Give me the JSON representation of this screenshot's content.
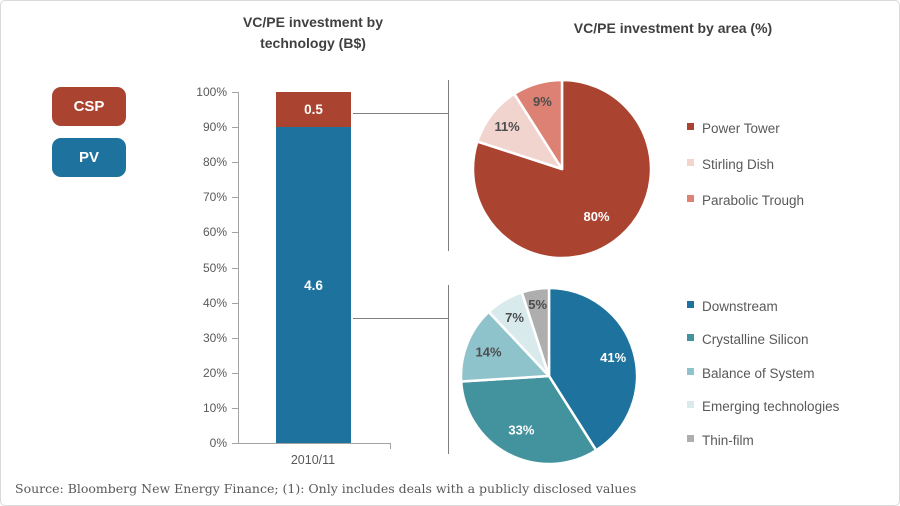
{
  "titles": {
    "bar_chart": "VC/PE investment by technology (B$)",
    "pie_charts": "VC/PE investment by area (%)"
  },
  "source_note": "Source: Bloomberg New Energy Finance; (1): Only includes deals with a publicly disclosed values",
  "colors": {
    "csp_red": "#AA4330",
    "pv_blue": "#1E739E",
    "pink_light": "#F2D4CF",
    "salmon": "#DC8173",
    "teal": "#43939F",
    "teal_light": "#8FC3CB",
    "blue_pale": "#D9EAED",
    "gray_slice": "#AEAEAE",
    "axis_gray": "#A3A3A3",
    "text_gray": "#595959",
    "title_gray": "#404040",
    "pie_dark_label": "#4D4D4D"
  },
  "tech_legend": [
    {
      "label": "CSP",
      "color": "#AA4330"
    },
    {
      "label": "PV",
      "color": "#1E739E"
    }
  ],
  "chart_data": [
    {
      "type": "bar",
      "variant": "stacked-100",
      "title": "VC/PE investment by technology (B$)",
      "categories": [
        "2010/11"
      ],
      "series": [
        {
          "name": "PV",
          "value_b": 4.6,
          "percent": 90,
          "label": "4.6",
          "color": "#1E739E"
        },
        {
          "name": "CSP",
          "value_b": 0.5,
          "percent": 10,
          "label": "0.5",
          "color": "#AA4330"
        }
      ],
      "ylabel": "",
      "ylim": [
        0,
        100
      ],
      "y_tick_step": 10,
      "y_tick_labels": [
        "0%",
        "10%",
        "20%",
        "30%",
        "40%",
        "50%",
        "60%",
        "70%",
        "80%",
        "90%",
        "100%"
      ],
      "grid": false
    },
    {
      "type": "pie",
      "group": "CSP",
      "title": "VC/PE investment by area (%)",
      "start_angle_deg": 0,
      "direction": "clockwise",
      "legend_position": "right",
      "slices": [
        {
          "label": "Power Tower",
          "value": 80,
          "pct_label": "80%",
          "color": "#AA4330",
          "label_color": "#ffffff",
          "label_r": 0.66
        },
        {
          "label": "Stirling Dish",
          "value": 11,
          "pct_label": "11%",
          "color": "#F2D4CF",
          "label_color": "#4D4D4D",
          "label_r": 0.78
        },
        {
          "label": "Parabolic Trough",
          "value": 9,
          "pct_label": "9%",
          "color": "#DC8173",
          "label_color": "#4D4D4D",
          "label_r": 0.79
        }
      ]
    },
    {
      "type": "pie",
      "group": "PV",
      "title": "VC/PE investment by area (%)",
      "start_angle_deg": 0,
      "direction": "clockwise",
      "legend_position": "right",
      "slices": [
        {
          "label": "Downstream",
          "value": 41,
          "pct_label": "41%",
          "color": "#1E739E",
          "label_color": "#ffffff",
          "label_r": 0.76
        },
        {
          "label": "Crystalline Silicon",
          "value": 33,
          "pct_label": "33%",
          "color": "#43939F",
          "label_color": "#ffffff",
          "label_r": 0.69
        },
        {
          "label": "Balance of System",
          "value": 14,
          "pct_label": "14%",
          "color": "#8FC3CB",
          "label_color": "#4D4D4D",
          "label_r": 0.74
        },
        {
          "label": "Emerging technologies",
          "value": 7,
          "pct_label": "7%",
          "color": "#D9EAED",
          "label_color": "#4D4D4D",
          "label_r": 0.77
        },
        {
          "label": "Thin-film",
          "value": 5,
          "pct_label": "5%",
          "color": "#AEAEAE",
          "label_color": "#4D4D4D",
          "label_r": 0.82
        }
      ]
    }
  ]
}
